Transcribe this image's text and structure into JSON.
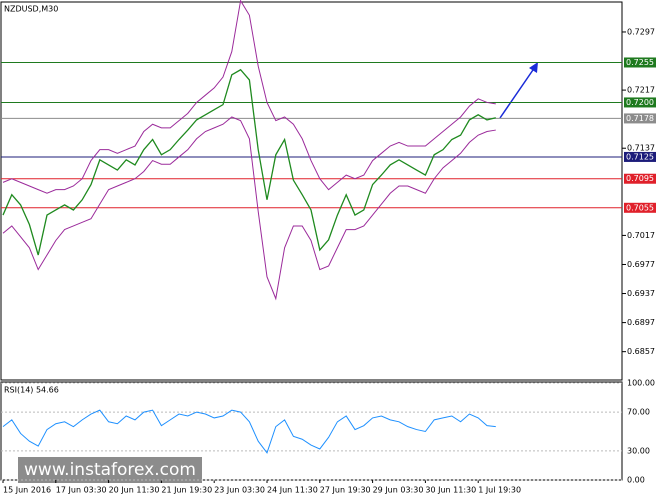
{
  "chart_data": {
    "type": "line",
    "title": "NZDUSD,M30",
    "categories": [
      "15 Jun 2016",
      null,
      null,
      null,
      null,
      null,
      "17 Jun 03:30",
      null,
      null,
      null,
      null,
      null,
      "20 Jun 11:30",
      null,
      null,
      null,
      null,
      null,
      "21 Jun 19:30",
      null,
      null,
      null,
      null,
      null,
      "23 Jun 03:30",
      null,
      null,
      null,
      null,
      null,
      "24 Jun 11:30",
      null,
      null,
      null,
      null,
      null,
      "27 Jun 19:30",
      null,
      null,
      null,
      null,
      null,
      "29 Jun 03:30",
      null,
      null,
      null,
      null,
      null,
      "30 Jun 11:30",
      null,
      null,
      null,
      null,
      null,
      "1 Jul 19:30",
      null,
      null
    ],
    "series": [
      {
        "name": "Close",
        "color": "#1f8a1f",
        "values": [
          0.7045,
          0.7073,
          0.7059,
          0.7032,
          0.699,
          0.7045,
          0.7052,
          0.7059,
          0.7052,
          0.7066,
          0.7087,
          0.7121,
          0.7114,
          0.7107,
          0.7121,
          0.7114,
          0.7135,
          0.7149,
          0.7128,
          0.7135,
          0.7149,
          0.7162,
          0.7176,
          0.7183,
          0.719,
          0.7197,
          0.7238,
          0.7245,
          0.7231,
          0.7135,
          0.7066,
          0.7128,
          0.7149,
          0.7093,
          0.7073,
          0.7052,
          0.6997,
          0.7011,
          0.7045,
          0.7073,
          0.7045,
          0.7052,
          0.7087,
          0.71,
          0.7114,
          0.7121,
          0.7114,
          0.7107,
          0.71,
          0.7128,
          0.7135,
          0.7149,
          0.7155,
          0.7176,
          0.7183,
          0.7176,
          0.7179
        ]
      },
      {
        "name": "Upper band",
        "color": "#9b2b9b",
        "values": [
          0.709,
          0.7095,
          0.709,
          0.7085,
          0.708,
          0.7075,
          0.708,
          0.708,
          0.7085,
          0.7095,
          0.712,
          0.7135,
          0.7135,
          0.713,
          0.7135,
          0.714,
          0.716,
          0.717,
          0.7165,
          0.7165,
          0.7175,
          0.7185,
          0.72,
          0.721,
          0.722,
          0.7235,
          0.727,
          0.734,
          0.732,
          0.725,
          0.72,
          0.7175,
          0.718,
          0.717,
          0.715,
          0.712,
          0.7095,
          0.708,
          0.709,
          0.71,
          0.7095,
          0.71,
          0.712,
          0.713,
          0.714,
          0.7145,
          0.714,
          0.714,
          0.714,
          0.715,
          0.716,
          0.717,
          0.718,
          0.7195,
          0.7205,
          0.72,
          0.7198
        ]
      },
      {
        "name": "Lower band",
        "color": "#9b2b9b",
        "values": [
          0.702,
          0.703,
          0.7015,
          0.7,
          0.697,
          0.699,
          0.701,
          0.7025,
          0.703,
          0.7035,
          0.704,
          0.706,
          0.708,
          0.7085,
          0.709,
          0.7095,
          0.7105,
          0.712,
          0.7115,
          0.7115,
          0.7125,
          0.7135,
          0.715,
          0.716,
          0.7165,
          0.717,
          0.718,
          0.7175,
          0.715,
          0.705,
          0.696,
          0.693,
          0.7,
          0.703,
          0.703,
          0.701,
          0.697,
          0.6975,
          0.7,
          0.7025,
          0.7025,
          0.703,
          0.7045,
          0.706,
          0.7075,
          0.7085,
          0.7085,
          0.708,
          0.7075,
          0.7095,
          0.711,
          0.712,
          0.713,
          0.7145,
          0.7155,
          0.716,
          0.7162
        ]
      }
    ],
    "ylim": [
      0.6818,
      0.7341
    ],
    "yticks": [
      0.7297,
      0.7217,
      0.7137,
      0.7017,
      0.6977,
      0.6937,
      0.6897,
      0.6857
    ],
    "levels": [
      {
        "value": 0.7255,
        "label": "0.7255",
        "color": "#1f7a1f"
      },
      {
        "value": 0.72,
        "label": "0.7200",
        "color": "#1f7a1f"
      },
      {
        "value": 0.7178,
        "label": "0.7178",
        "color": "#8c8c8c"
      },
      {
        "value": 0.7125,
        "label": "0.7125",
        "color": "#1c1c7a"
      },
      {
        "value": 0.7095,
        "label": "0.7095",
        "color": "#e0202a"
      },
      {
        "value": 0.7055,
        "label": "0.7055",
        "color": "#e0202a"
      }
    ],
    "rsi": {
      "title": "RSI(14) 54.66",
      "color": "#1e90ff",
      "ylim": [
        0,
        100
      ],
      "yticks": [
        {
          "value": 100,
          "label": "100.00"
        },
        {
          "value": 70,
          "label": "70.00"
        },
        {
          "value": 30,
          "label": "30.00"
        },
        {
          "value": 0,
          "label": "0.00"
        }
      ],
      "values": [
        55,
        62,
        48,
        40,
        35,
        52,
        58,
        60,
        55,
        62,
        68,
        72,
        60,
        58,
        66,
        62,
        70,
        72,
        56,
        62,
        68,
        66,
        70,
        68,
        64,
        66,
        72,
        70,
        60,
        40,
        28,
        55,
        62,
        45,
        42,
        36,
        32,
        44,
        60,
        66,
        52,
        56,
        64,
        66,
        62,
        60,
        55,
        52,
        50,
        62,
        64,
        66,
        60,
        68,
        64,
        56,
        55
      ]
    },
    "watermark": "www.instaforex.com"
  }
}
